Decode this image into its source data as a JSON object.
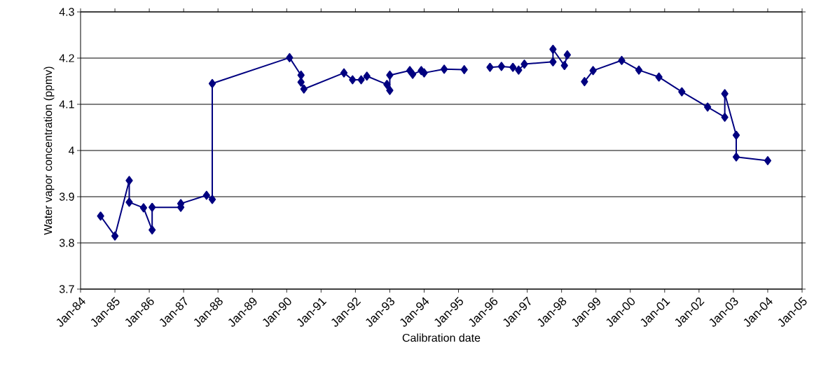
{
  "chart_data": {
    "type": "line",
    "xlabel": "Calibration date",
    "ylabel": "Water vapor concentration (ppmv)",
    "x": [
      "1984-08",
      "1985-01",
      "1985-06",
      "1985-06",
      "1985-11",
      "1986-02",
      "1986-02",
      "1986-12",
      "1986-12",
      "1987-09",
      "1987-11",
      "1987-11",
      "1990-02",
      "1990-06",
      "1990-06",
      "1990-07",
      "1991-09",
      "1991-12",
      "1992-03",
      "1992-05",
      "1992-12",
      "1993-01",
      "1993-01",
      "1993-08",
      "1993-09",
      "1993-12",
      "1994-01",
      "1994-08",
      "1995-03",
      "1995-08",
      "1995-12",
      "1996-04",
      "1996-08",
      "1996-10",
      "1996-12",
      "1997-10",
      "1997-10",
      "1998-02",
      "1998-03",
      "1998-06",
      "1998-09",
      "1998-12",
      "1999-10",
      "2000-04",
      "2000-11",
      "2001-07",
      "2002-04",
      "2002-10",
      "2002-10",
      "2003-02",
      "2003-02",
      "2004-01"
    ],
    "series": [
      {
        "color": "#000080",
        "values": [
          3.858,
          3.815,
          3.935,
          3.888,
          3.876,
          3.828,
          3.877,
          3.877,
          3.885,
          3.903,
          3.894,
          4.145,
          4.201,
          4.163,
          4.148,
          4.133,
          4.168,
          4.153,
          4.153,
          4.161,
          4.143,
          4.13,
          4.163,
          4.173,
          4.165,
          4.173,
          4.168,
          4.176,
          4.175,
          null,
          4.18,
          4.182,
          4.18,
          4.174,
          4.187,
          4.192,
          4.219,
          4.184,
          4.207,
          null,
          4.149,
          4.173,
          4.195,
          4.174,
          4.159,
          4.127,
          4.094,
          4.072,
          4.123,
          4.033,
          3.986,
          3.978
        ]
      }
    ],
    "xlim": [
      "1984-01",
      "2005-01"
    ],
    "xticks": [
      {
        "value": "1984-01",
        "label": "Jan-84"
      },
      {
        "value": "1985-01",
        "label": "Jan-85"
      },
      {
        "value": "1986-01",
        "label": "Jan-86"
      },
      {
        "value": "1987-01",
        "label": "Jan-87"
      },
      {
        "value": "1988-01",
        "label": "Jan-88"
      },
      {
        "value": "1989-01",
        "label": "Jan-89"
      },
      {
        "value": "1990-01",
        "label": "Jan-90"
      },
      {
        "value": "1991-01",
        "label": "Jan-91"
      },
      {
        "value": "1992-01",
        "label": "Jan-92"
      },
      {
        "value": "1993-01",
        "label": "Jan-93"
      },
      {
        "value": "1994-01",
        "label": "Jan-94"
      },
      {
        "value": "1995-01",
        "label": "Jan-95"
      },
      {
        "value": "1996-01",
        "label": "Jan-96"
      },
      {
        "value": "1997-01",
        "label": "Jan-97"
      },
      {
        "value": "1998-01",
        "label": "Jan-98"
      },
      {
        "value": "1999-01",
        "label": "Jan-99"
      },
      {
        "value": "2000-01",
        "label": "Jan-00"
      },
      {
        "value": "2001-01",
        "label": "Jan-01"
      },
      {
        "value": "2002-01",
        "label": "Jan-02"
      },
      {
        "value": "2003-01",
        "label": "Jan-03"
      },
      {
        "value": "2004-01",
        "label": "Jan-04"
      },
      {
        "value": "2005-01",
        "label": "Jan-05"
      }
    ],
    "ylim": [
      3.7,
      4.3
    ],
    "yticks": [
      3.7,
      3.8,
      3.9,
      4,
      4.1,
      4.2,
      4.3
    ],
    "grid": "y",
    "marker": "diamond",
    "line_style": "solid"
  }
}
